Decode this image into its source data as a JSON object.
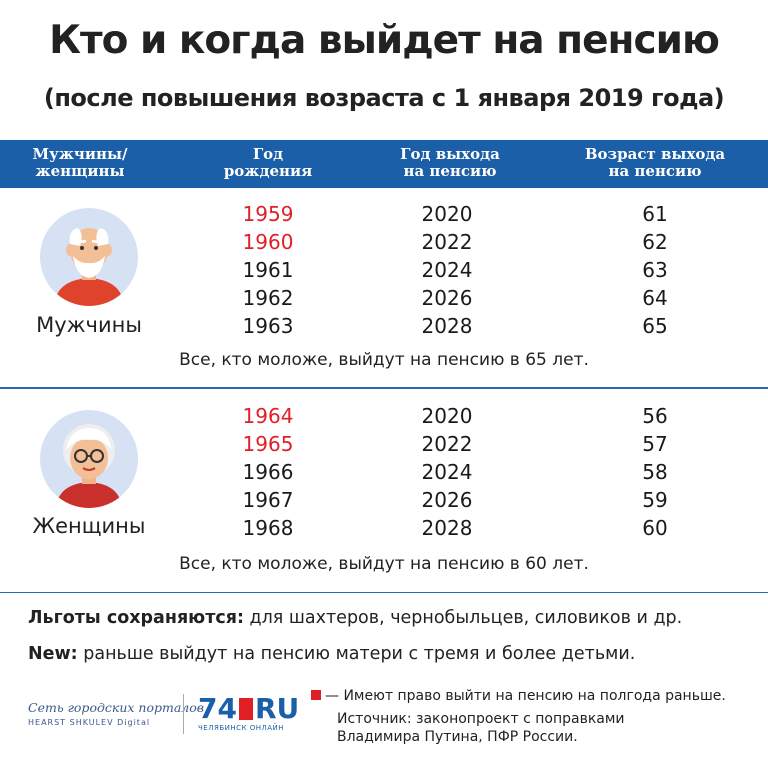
{
  "title": "Кто и когда выйдет на пенсию",
  "subtitle": "(после повышения возраста с 1 января 2019 года)",
  "header": {
    "col1": [
      "Мужчины/",
      "женщины"
    ],
    "col2": [
      "Год",
      "рождения"
    ],
    "col3": [
      "Год выхода",
      "на пенсию"
    ],
    "col4": [
      "Возраст выхода",
      "на пенсию"
    ]
  },
  "men": {
    "label": "Мужчины",
    "rows": [
      {
        "birth": "1959",
        "retire": "2020",
        "age": "61",
        "highlight": true
      },
      {
        "birth": "1960",
        "retire": "2022",
        "age": "62",
        "highlight": true
      },
      {
        "birth": "1961",
        "retire": "2024",
        "age": "63",
        "highlight": false
      },
      {
        "birth": "1962",
        "retire": "2026",
        "age": "64",
        "highlight": false
      },
      {
        "birth": "1963",
        "retire": "2028",
        "age": "65",
        "highlight": false
      }
    ],
    "note": "Все, кто моложе, выйдут на пенсию в 65 лет."
  },
  "women": {
    "label": "Женщины",
    "rows": [
      {
        "birth": "1964",
        "retire": "2020",
        "age": "56",
        "highlight": true
      },
      {
        "birth": "1965",
        "retire": "2022",
        "age": "57",
        "highlight": true
      },
      {
        "birth": "1966",
        "retire": "2024",
        "age": "58",
        "highlight": false
      },
      {
        "birth": "1967",
        "retire": "2026",
        "age": "59",
        "highlight": false
      },
      {
        "birth": "1968",
        "retire": "2028",
        "age": "60",
        "highlight": false
      }
    ],
    "note": "Все, кто моложе, выйдут на пенсию в 60 лет."
  },
  "footer": {
    "benefits_bold": "Льготы сохраняются:",
    "benefits_text": " для шахтеров, чернобыльцев, силовиков и др.",
    "new_bold": "New:",
    "new_text": " раньше выйдут на пенсию матери с тремя и более детьми."
  },
  "logos": {
    "portal_line1": "Сеть городских порталов",
    "portal_line2": "HEARST SHKULEV Digital",
    "brand_left": "74",
    "brand_right": "RU",
    "brand_sub": "ЧЕЛЯБИНСК ОНЛАЙН"
  },
  "legend": "— Имеют право выйти на пенсию на полгода раньше.",
  "source": [
    "Источник: законопроект с поправками",
    "Владимира Путина, ПФР России."
  ],
  "colors": {
    "accent": "#1c5fa9",
    "highlight": "#e01f26"
  },
  "icons": {
    "men": "elderly-man-icon",
    "women": "elderly-woman-icon"
  }
}
